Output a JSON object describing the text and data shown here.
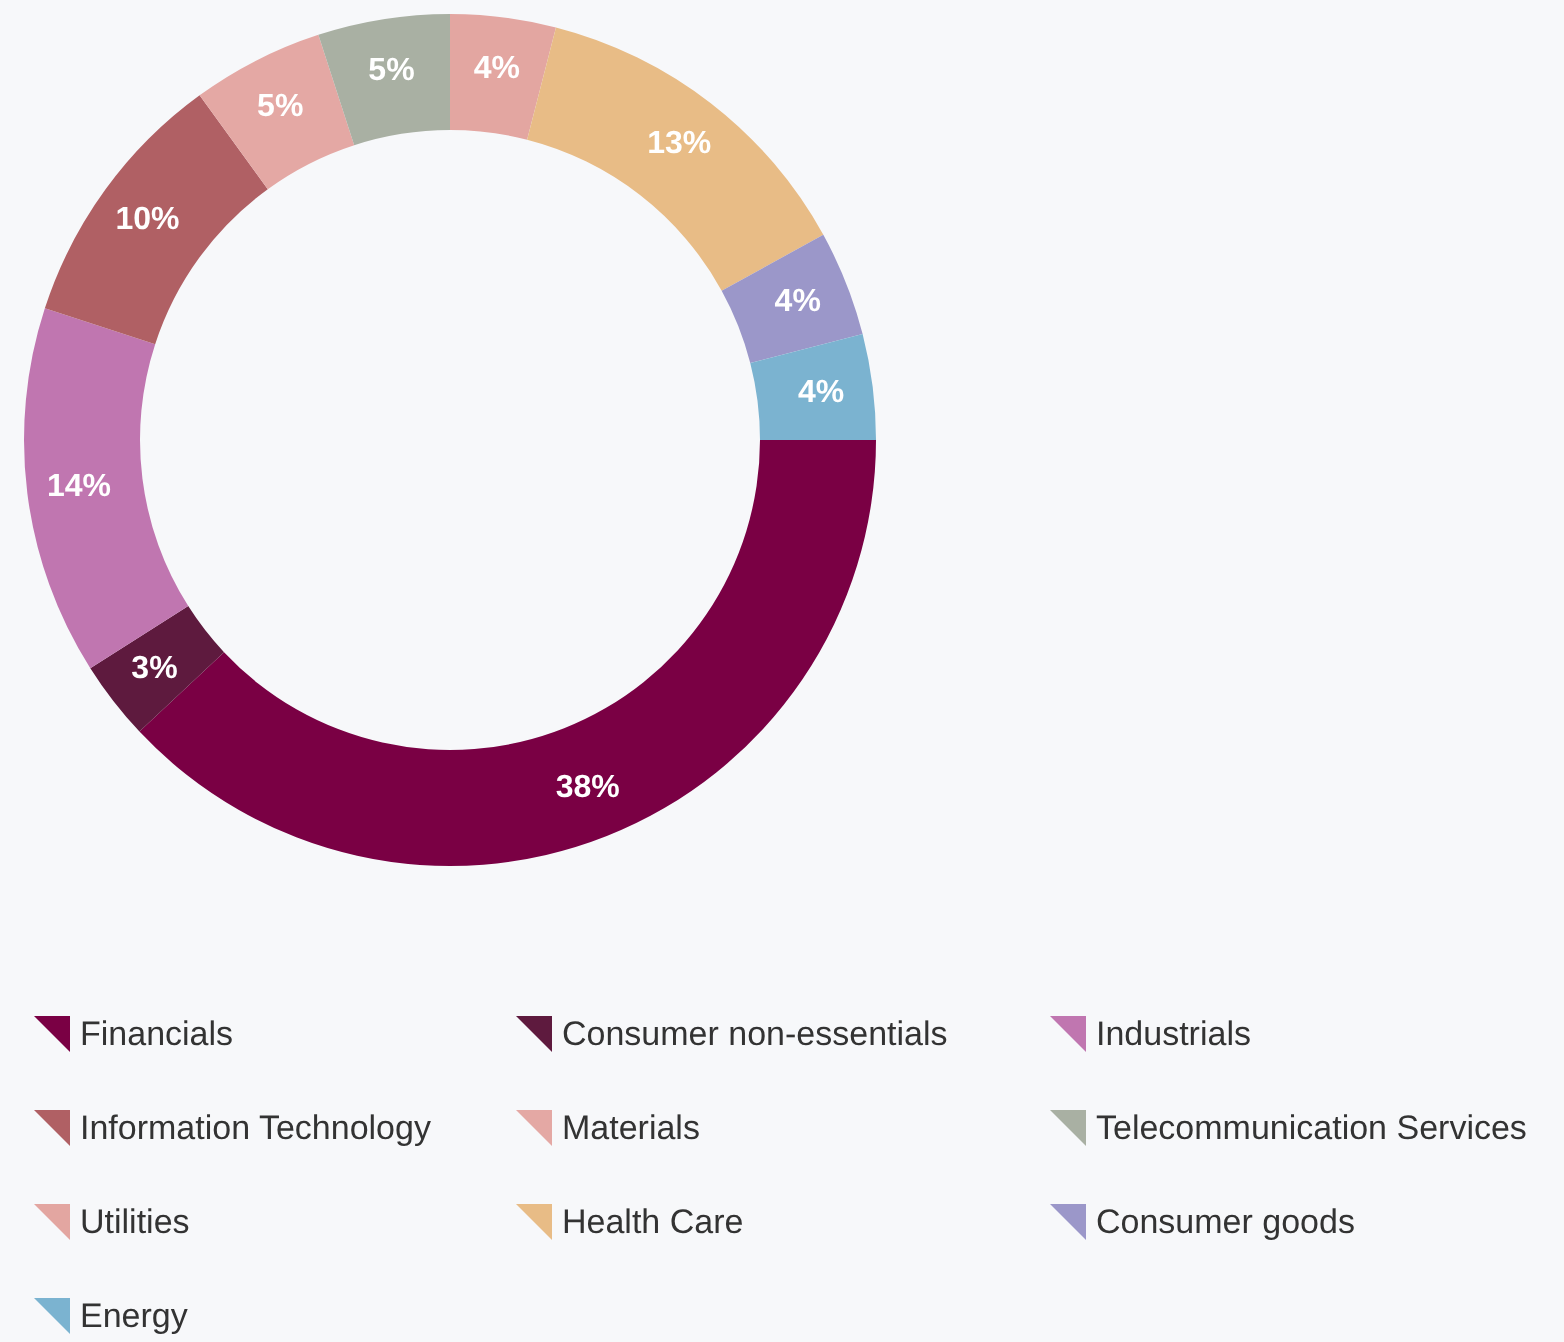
{
  "chart_data": {
    "type": "donut",
    "categories": [
      "Financials",
      "Consumer non-essentials",
      "Industrials",
      "Information Technology",
      "Materials",
      "Telecommunication Services",
      "Utilities",
      "Health Care",
      "Consumer goods",
      "Energy"
    ],
    "values": [
      38,
      3,
      14,
      10,
      5,
      5,
      4,
      13,
      4,
      4
    ],
    "colors": [
      "#7a0044",
      "#5e1a3e",
      "#c076b0",
      "#b06064",
      "#e4a8a4",
      "#a9b0a3",
      "#e3a6a1",
      "#e8bc86",
      "#9b97c9",
      "#7bb3d0"
    ],
    "value_labels": [
      "38%",
      "3%",
      "14%",
      "10%",
      "5%",
      "5%",
      "4%",
      "13%",
      "4%",
      "4%"
    ],
    "legend": "bottom"
  }
}
